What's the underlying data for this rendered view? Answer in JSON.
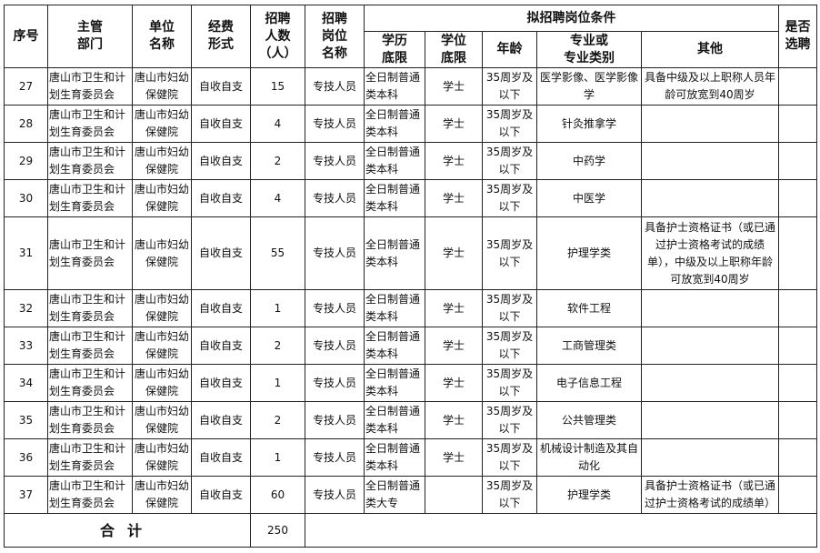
{
  "header": {
    "seq": "序号",
    "dept": [
      "主管",
      "部门"
    ],
    "unit": [
      "单位",
      "名称"
    ],
    "funding": [
      "经费",
      "形式"
    ],
    "count": [
      "招聘",
      "人数",
      "（人）"
    ],
    "post": [
      "招聘",
      "岗位",
      "名称"
    ],
    "conditions": "拟招聘岗位条件",
    "edu": [
      "学历",
      "底限"
    ],
    "degree": [
      "学位",
      "底限"
    ],
    "age": "年龄",
    "major": [
      "专业或",
      "专业类别"
    ],
    "other": "其他",
    "selected": [
      "是否",
      "选聘"
    ]
  },
  "rows": [
    {
      "seq": "27",
      "dept": "唐山市卫生和计划生育委员会",
      "unit": "唐山市妇幼保健院",
      "funding": "自收自支",
      "count": "15",
      "post": "专技人员",
      "edu": "全日制普通类本科",
      "degree": "学士",
      "age": "35周岁及以下",
      "major": "医学影像、医学影像学",
      "other": "具备中级及以上职称人员年龄可放宽到40周岁",
      "selected": ""
    },
    {
      "seq": "28",
      "dept": "唐山市卫生和计划生育委员会",
      "unit": "唐山市妇幼保健院",
      "funding": "自收自支",
      "count": "4",
      "post": "专技人员",
      "edu": "全日制普通类本科",
      "degree": "学士",
      "age": "35周岁及以下",
      "major": "针灸推拿学",
      "other": "",
      "selected": ""
    },
    {
      "seq": "29",
      "dept": "唐山市卫生和计划生育委员会",
      "unit": "唐山市妇幼保健院",
      "funding": "自收自支",
      "count": "2",
      "post": "专技人员",
      "edu": "全日制普通类本科",
      "degree": "学士",
      "age": "35周岁及以下",
      "major": "中药学",
      "other": "",
      "selected": ""
    },
    {
      "seq": "30",
      "dept": "唐山市卫生和计划生育委员会",
      "unit": "唐山市妇幼保健院",
      "funding": "自收自支",
      "count": "4",
      "post": "专技人员",
      "edu": "全日制普通类本科",
      "degree": "学士",
      "age": "35周岁及以下",
      "major": "中医学",
      "other": "",
      "selected": ""
    },
    {
      "seq": "31",
      "dept": "唐山市卫生和计划生育委员会",
      "unit": "唐山市妇幼保健院",
      "funding": "自收自支",
      "count": "55",
      "post": "专技人员",
      "edu": "全日制普通类本科",
      "degree": "学士",
      "age": "35周岁及以下",
      "major": "护理学类",
      "other": "具备护士资格证书（或已通过护士资格考试的成绩单），中级及以上职称年龄可放宽到40周岁",
      "selected": ""
    },
    {
      "seq": "32",
      "dept": "唐山市卫生和计划生育委员会",
      "unit": "唐山市妇幼保健院",
      "funding": "自收自支",
      "count": "1",
      "post": "专技人员",
      "edu": "全日制普通类本科",
      "degree": "学士",
      "age": "35周岁及以下",
      "major": "软件工程",
      "other": "",
      "selected": ""
    },
    {
      "seq": "33",
      "dept": "唐山市卫生和计划生育委员会",
      "unit": "唐山市妇幼保健院",
      "funding": "自收自支",
      "count": "2",
      "post": "专技人员",
      "edu": "全日制普通类本科",
      "degree": "学士",
      "age": "35周岁及以下",
      "major": "工商管理类",
      "other": "",
      "selected": ""
    },
    {
      "seq": "34",
      "dept": "唐山市卫生和计划生育委员会",
      "unit": "唐山市妇幼保健院",
      "funding": "自收自支",
      "count": "1",
      "post": "专技人员",
      "edu": "全日制普通类本科",
      "degree": "学士",
      "age": "35周岁及以下",
      "major": "电子信息工程",
      "other": "",
      "selected": ""
    },
    {
      "seq": "35",
      "dept": "唐山市卫生和计划生育委员会",
      "unit": "唐山市妇幼保健院",
      "funding": "自收自支",
      "count": "2",
      "post": "专技人员",
      "edu": "全日制普通类本科",
      "degree": "学士",
      "age": "35周岁及以下",
      "major": "公共管理类",
      "other": "",
      "selected": ""
    },
    {
      "seq": "36",
      "dept": "唐山市卫生和计划生育委员会",
      "unit": "唐山市妇幼保健院",
      "funding": "自收自支",
      "count": "1",
      "post": "专技人员",
      "edu": "全日制普通类本科",
      "degree": "学士",
      "age": "35周岁及以下",
      "major": "机械设计制造及其自动化",
      "other": "",
      "selected": ""
    },
    {
      "seq": "37",
      "dept": "唐山市卫生和计划生育委员会",
      "unit": "唐山市妇幼保健院",
      "funding": "自收自支",
      "count": "60",
      "post": "专技人员",
      "edu": "全日制普通类大专",
      "degree": "",
      "age": "35周岁及以下",
      "major": "护理学类",
      "other": "具备护士资格证书（或已通过护士资格考试的成绩单）",
      "selected": ""
    }
  ],
  "total": {
    "label": "合计",
    "count": "250"
  }
}
